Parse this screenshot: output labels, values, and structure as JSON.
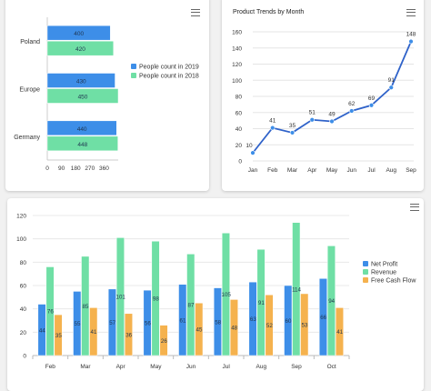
{
  "chart_data": [
    {
      "type": "bar",
      "orientation": "horizontal",
      "categories": [
        "Poland",
        "Europe",
        "Germany"
      ],
      "series": [
        {
          "name": "People count in 2019",
          "color": "#3d8ee8",
          "values": [
            400,
            430,
            440
          ]
        },
        {
          "name": "People count in 2018",
          "color": "#6fdfa5",
          "values": [
            420,
            450,
            448
          ]
        }
      ],
      "xticks": [
        "0",
        "90",
        "180",
        "270",
        "360"
      ],
      "xlim": [
        0,
        450
      ],
      "legend": "right",
      "title": "",
      "xlabel": "",
      "ylabel": ""
    },
    {
      "type": "line",
      "title": "Product Trends by Month",
      "categories": [
        "Jan",
        "Feb",
        "Mar",
        "Apr",
        "May",
        "Jun",
        "Jul",
        "Aug",
        "Sep"
      ],
      "series": [
        {
          "color": "#2f62c9",
          "values": [
            10,
            41,
            35,
            51,
            49,
            62,
            69,
            91,
            148
          ]
        }
      ],
      "yticks": [
        "0",
        "20",
        "40",
        "60",
        "80",
        "100",
        "120",
        "140",
        "160"
      ],
      "ylim": [
        0,
        160
      ],
      "grid": true,
      "xlabel": "",
      "ylabel": ""
    },
    {
      "type": "bar",
      "categories": [
        "Feb",
        "Mar",
        "Apr",
        "May",
        "Jun",
        "Jul",
        "Aug",
        "Sep",
        "Oct"
      ],
      "series": [
        {
          "name": "Net Profit",
          "color": "#3d8ee8",
          "values": [
            44,
            55,
            57,
            56,
            61,
            58,
            63,
            60,
            66
          ]
        },
        {
          "name": "Revenue",
          "color": "#6fdfa5",
          "values": [
            76,
            85,
            101,
            98,
            87,
            105,
            91,
            114,
            94
          ]
        },
        {
          "name": "Free Cash Flow",
          "color": "#f5b24e",
          "values": [
            35,
            41,
            36,
            26,
            45,
            48,
            52,
            53,
            41
          ]
        }
      ],
      "yticks": [
        "0",
        "20",
        "40",
        "60",
        "80",
        "100",
        "120"
      ],
      "ylim": [
        0,
        120
      ],
      "grid": true,
      "legend": "right",
      "title": "",
      "xlabel": "",
      "ylabel": ""
    }
  ],
  "toolbar": {
    "menu_icon": "hamburger-menu-icon"
  }
}
